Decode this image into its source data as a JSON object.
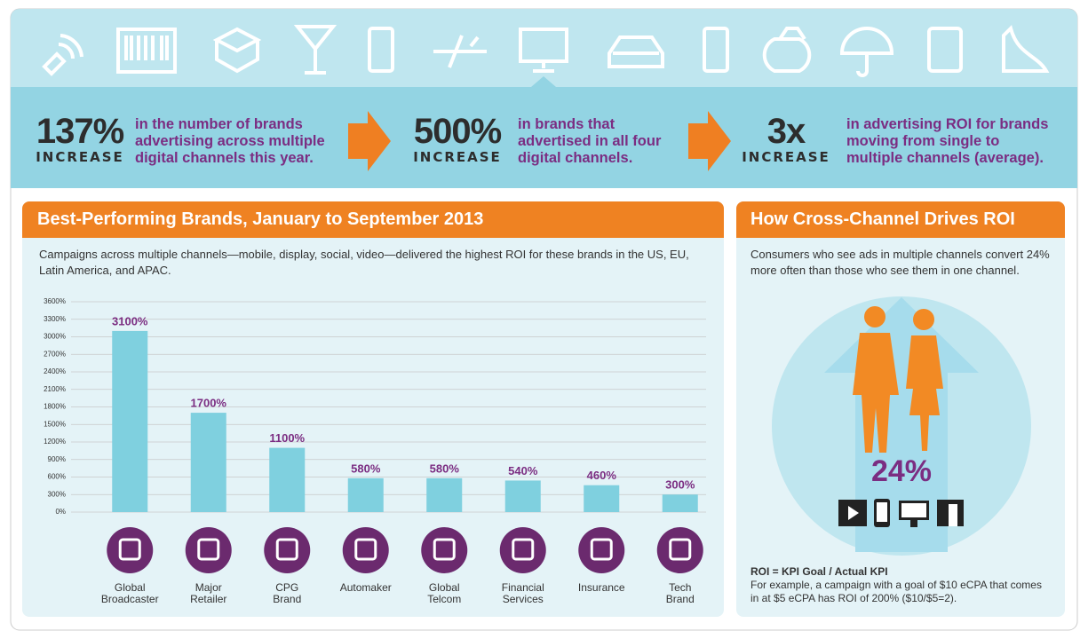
{
  "stats": [
    {
      "value": "137%",
      "label": "INCREASE",
      "text": "in the number of brands advertising across multiple digital channels this year."
    },
    {
      "value": "500%",
      "label": "INCREASE",
      "text": "in brands that advertised in all four digital channels."
    },
    {
      "value": "3x",
      "label": "INCREASE",
      "text": "in advertising ROI for brands moving from single to multiple channels (average)."
    }
  ],
  "chart_data": {
    "type": "bar",
    "title": "Best-Performing Brands, January to September 2013",
    "subtitle": "Campaigns across multiple channels—mobile, display, social, video—delivered the highest ROI for these brands in the US, EU, Latin America, and APAC.",
    "categories": [
      "Global Broadcaster",
      "Major Retailer",
      "CPG Brand",
      "Automaker",
      "Global Telcom",
      "Financial Services",
      "Insurance",
      "Tech Brand"
    ],
    "values": [
      3100,
      1700,
      1100,
      580,
      580,
      540,
      460,
      300
    ],
    "value_labels": [
      "3100%",
      "1700%",
      "1100%",
      "580%",
      "580%",
      "540%",
      "460%",
      "300%"
    ],
    "color": "#7fd0df",
    "ylim": [
      0,
      3600
    ],
    "yticks": [
      {
        "value": 0,
        "label": "0%"
      },
      {
        "value": 300,
        "label": "300%"
      },
      {
        "value": 600,
        "label": "600%"
      },
      {
        "value": 900,
        "label": "900%"
      },
      {
        "value": 1200,
        "label": "1200%"
      },
      {
        "value": 1500,
        "label": "1500%"
      },
      {
        "value": 1800,
        "label": "1800%"
      },
      {
        "value": 2100,
        "label": "2100%"
      },
      {
        "value": 2400,
        "label": "2400%"
      },
      {
        "value": 2700,
        "label": "2700%"
      },
      {
        "value": 3000,
        "label": "3000%"
      },
      {
        "value": 3300,
        "label": "3300%"
      },
      {
        "value": 3600,
        "label": "3600%"
      }
    ],
    "grid": true
  },
  "right_panel": {
    "title": "How Cross-Channel Drives ROI",
    "description": "Consumers who see ads in multiple channels convert 24% more often than those who see them in one channel.",
    "highlight": "24%",
    "formula": "ROI = KPI Goal / Actual KPI",
    "example": "For example, a campaign with a goal of $10 eCPA that comes in at $5 eCPA has ROI of 200% ($10/$5=2)."
  }
}
